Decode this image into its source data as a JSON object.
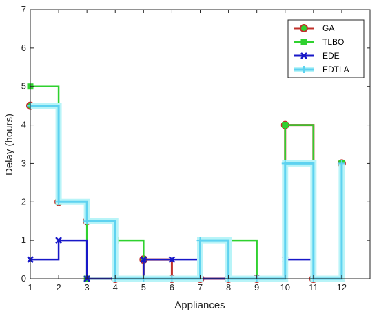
{
  "chart_data": {
    "type": "line",
    "step": true,
    "xlabel": "Appliances",
    "ylabel": "Delay (hours)",
    "xlim": [
      1,
      13
    ],
    "ylim": [
      0,
      7
    ],
    "xticks": [
      1,
      2,
      3,
      4,
      5,
      6,
      7,
      8,
      9,
      10,
      11,
      12
    ],
    "yticks": [
      0,
      1,
      2,
      3,
      4,
      5,
      6,
      7
    ],
    "grid": false,
    "legend": {
      "position": "top-right"
    },
    "x": [
      1,
      2,
      3,
      4,
      5,
      6,
      7,
      8,
      9,
      10,
      11,
      12
    ],
    "series": [
      {
        "name": "GA",
        "color": "#C0302A",
        "marker": "circle",
        "values": [
          4.5,
          2,
          1.5,
          0,
          0.5,
          0,
          0,
          0,
          0,
          4,
          0,
          3
        ]
      },
      {
        "name": "TLBO",
        "color": "#2FD12F",
        "marker": "square",
        "values": [
          5,
          2,
          0,
          1,
          0,
          0,
          1,
          1,
          0,
          4,
          0,
          3
        ]
      },
      {
        "name": "EDE",
        "color": "#1818C8",
        "marker": "x",
        "values": [
          0.5,
          1,
          0,
          0,
          0.5,
          0.5,
          0,
          0,
          0,
          0.5,
          0,
          0
        ]
      },
      {
        "name": "EDTLA",
        "color": "#5ED2F0",
        "marker": "plus",
        "values": [
          4.5,
          2,
          1.5,
          0,
          0,
          0,
          1,
          0,
          0,
          3,
          0,
          3
        ]
      }
    ]
  }
}
